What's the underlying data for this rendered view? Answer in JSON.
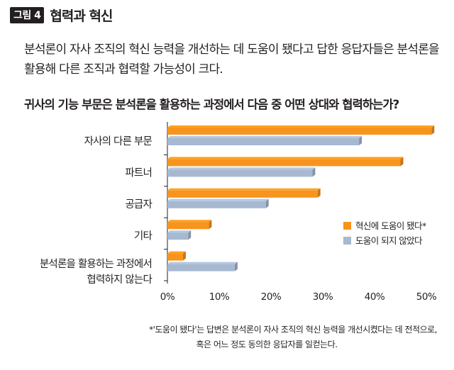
{
  "figure": {
    "badge": "그림 4",
    "title": "협력과 혁신",
    "summary": "분석론이 자사 조직의 혁신 능력을 개선하는 데 도움이 됐다고 답한 응답자들은 분석론을 활용해 다른 조직과 협력할 가능성이 크다.",
    "question": "귀사의 기능 부문은 분석론을 활용하는 과정에서 다음 중 어떤 상대와 협력하는가?",
    "footnote_line1": "*'도움이 됐다'는 답변은 분석론이 자사 조직의 혁신 능력을 개선시켰다는 데 전적으로,",
    "footnote_line2": "혹은 어느 정도 동의한 응답자를 일컫는다."
  },
  "chart_data": {
    "type": "bar",
    "orientation": "horizontal",
    "categories": [
      "자사의 다른 부문",
      "파트너",
      "공급자",
      "기타",
      "분석론을 활용하는 과정에서 협력하지 않는다"
    ],
    "category_lines": [
      [
        "자사의 다른 부문"
      ],
      [
        "파트너"
      ],
      [
        "공급자"
      ],
      [
        "기타"
      ],
      [
        "분석론을 활용하는 과정에서",
        "협력하지 않는다"
      ]
    ],
    "series": [
      {
        "name": "혁신에 도움이 됐다*",
        "color": "#f7941d",
        "values": [
          51,
          45,
          29,
          8,
          3
        ]
      },
      {
        "name": "도움이 되지 않았다",
        "color": "#a7b8d1",
        "values": [
          37,
          28,
          19,
          4,
          13
        ]
      }
    ],
    "xlim": [
      0,
      50
    ],
    "xticks": [
      0,
      10,
      20,
      30,
      40,
      50
    ],
    "tick_format": "%",
    "grid": false,
    "legend_position": "right"
  }
}
